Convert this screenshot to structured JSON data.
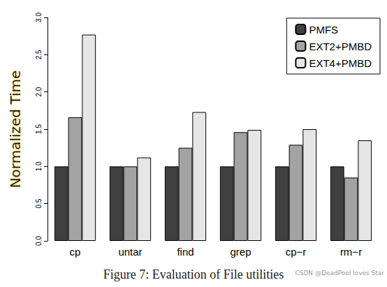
{
  "chart_data": {
    "type": "bar",
    "title": "Figure 7: Evaluation of File utilities",
    "y_label": "Normalized Time",
    "annotations": [
      "CSDN @DeadPool loves Star"
    ],
    "categories": [
      "cp",
      "untar",
      "find",
      "grep",
      "cp−r",
      "rm−r"
    ],
    "series": [
      {
        "name": "PMFS",
        "color": "#404040",
        "values": [
          1.0,
          1.0,
          1.0,
          1.0,
          1.0,
          1.0
        ]
      },
      {
        "name": "EXT2+PMBD",
        "color": "#a3a3a3",
        "values": [
          1.66,
          1.0,
          1.25,
          1.46,
          1.29,
          0.85
        ]
      },
      {
        "name": "EXT4+PMBD",
        "color": "#e6e6e6",
        "values": [
          2.77,
          1.12,
          1.73,
          1.49,
          1.5,
          1.35
        ]
      }
    ],
    "ylim": [
      0,
      3
    ],
    "yticks": [
      {
        "value": 0,
        "label": "0.0"
      },
      0.5,
      {
        "value": 1,
        "label": "1.0"
      },
      1.5,
      {
        "value": 2,
        "label": "2.0"
      },
      2.5,
      {
        "value": 3,
        "label": "3.0"
      }
    ],
    "grid": false,
    "legend": "top-right"
  }
}
